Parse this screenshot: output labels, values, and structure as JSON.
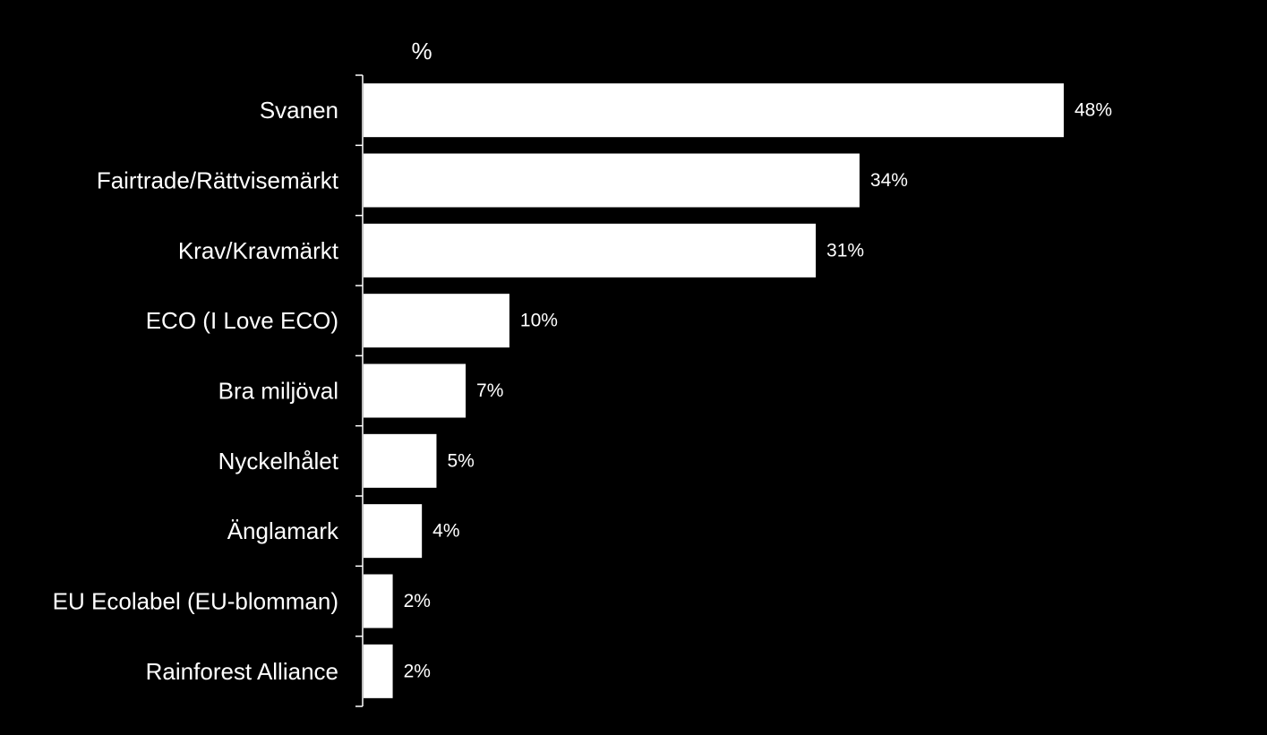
{
  "chart_data": {
    "type": "bar",
    "orientation": "horizontal",
    "unit_label": "%",
    "categories": [
      "Svanen",
      "Fairtrade/Rättvisemärkt",
      "Krav/Kravmärkt",
      "ECO (I Love ECO)",
      "Bra miljöval",
      "Nyckelhålet",
      "Änglamark",
      "EU Ecolabel (EU-blomman)",
      "Rainforest Alliance"
    ],
    "values": [
      48,
      34,
      31,
      10,
      7,
      5,
      4,
      2,
      2
    ],
    "value_labels": [
      "48%",
      "34%",
      "31%",
      "10%",
      "7%",
      "5%",
      "4%",
      "2%",
      "2%"
    ],
    "xlim": [
      0,
      48
    ],
    "grid": false,
    "legend": "none"
  },
  "colors": {
    "background": "#000000",
    "bar": "#ffffff",
    "text": "#ffffff",
    "axis": "#ffffff"
  }
}
